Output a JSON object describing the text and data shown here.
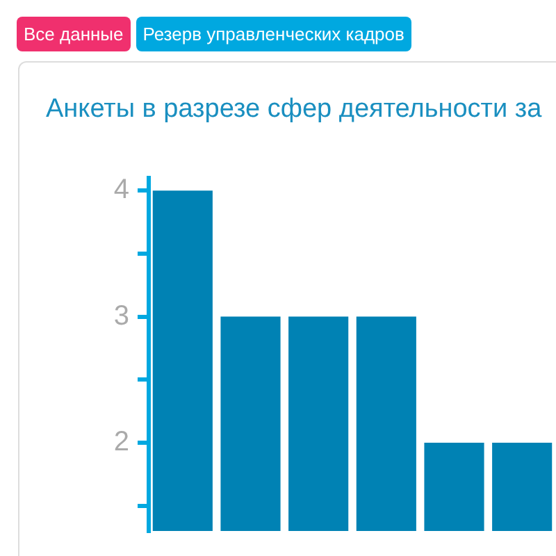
{
  "chart_data": {
    "type": "bar",
    "title": "Анкеты в разрезе сфер деятельности за",
    "annotations": [
      "Все данные",
      "Резерв управленческих кадров"
    ],
    "categories": [
      null,
      null,
      null,
      null,
      null,
      null
    ],
    "values": [
      4,
      3,
      3,
      3,
      2,
      2
    ],
    "color": "#0082b4",
    "ylim": [
      1.3,
      4.1
    ],
    "yticks": [
      {
        "value": 1.5,
        "label": null
      },
      2,
      {
        "value": 2.5,
        "label": null
      },
      3,
      {
        "value": 3.5,
        "label": null
      },
      4
    ],
    "grid": false,
    "legend": false
  }
}
